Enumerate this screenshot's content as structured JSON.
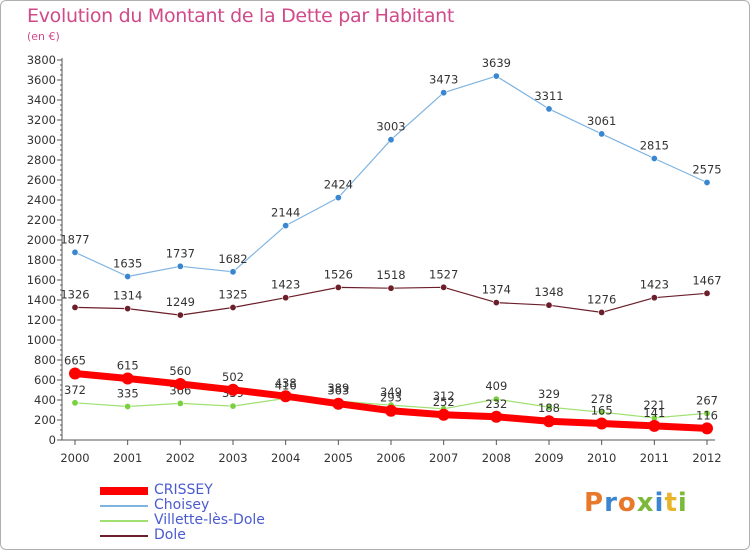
{
  "title": "Evolution du Montant de la Dette par Habitant",
  "subtitle": "(en €)",
  "logo": {
    "text": "Proxiti",
    "colors": [
      "#e8782a",
      "#3a86d0",
      "#e8782a",
      "#7ab93a",
      "#3a86d0",
      "#e8b52a",
      "#7ab93a"
    ]
  },
  "chart_data": {
    "type": "line",
    "categories": [
      "2000",
      "2001",
      "2002",
      "2003",
      "2004",
      "2005",
      "2006",
      "2007",
      "2008",
      "2009",
      "2010",
      "2011",
      "2012"
    ],
    "ylim": [
      0,
      3800
    ],
    "yticks": [
      0,
      200,
      400,
      600,
      800,
      1000,
      1200,
      1400,
      1600,
      1800,
      2000,
      2200,
      2400,
      2600,
      2800,
      3000,
      3200,
      3400,
      3600,
      3800
    ],
    "grid": false,
    "legend_position": "bottom-left",
    "series": [
      {
        "name": "Choisey",
        "color": "#7fb3e0",
        "marker": "#3a86d0",
        "width": 1.2,
        "values": [
          1877,
          1635,
          1737,
          1682,
          2144,
          2424,
          3003,
          3473,
          3639,
          3311,
          3061,
          2815,
          2575
        ]
      },
      {
        "name": "Dole",
        "color": "#6b1f2a",
        "marker": "#6b1f2a",
        "width": 1.2,
        "values": [
          1326,
          1314,
          1249,
          1325,
          1423,
          1526,
          1518,
          1527,
          1374,
          1348,
          1276,
          1423,
          1467
        ]
      },
      {
        "name": "Villette-lès-Dole",
        "color": "#9fe070",
        "marker": "#7ad040",
        "width": 1.2,
        "values": [
          372,
          335,
          366,
          339,
          416,
          389,
          349,
          312,
          409,
          329,
          278,
          221,
          267
        ]
      },
      {
        "name": "CRISSEY",
        "color": "#ff0000",
        "marker": "#ff0000",
        "width": 7,
        "values": [
          665,
          615,
          560,
          502,
          438,
          363,
          293,
          252,
          232,
          188,
          165,
          141,
          116
        ]
      }
    ],
    "legend_order": [
      "CRISSEY",
      "Choisey",
      "Villette-lès-Dole",
      "Dole"
    ]
  }
}
